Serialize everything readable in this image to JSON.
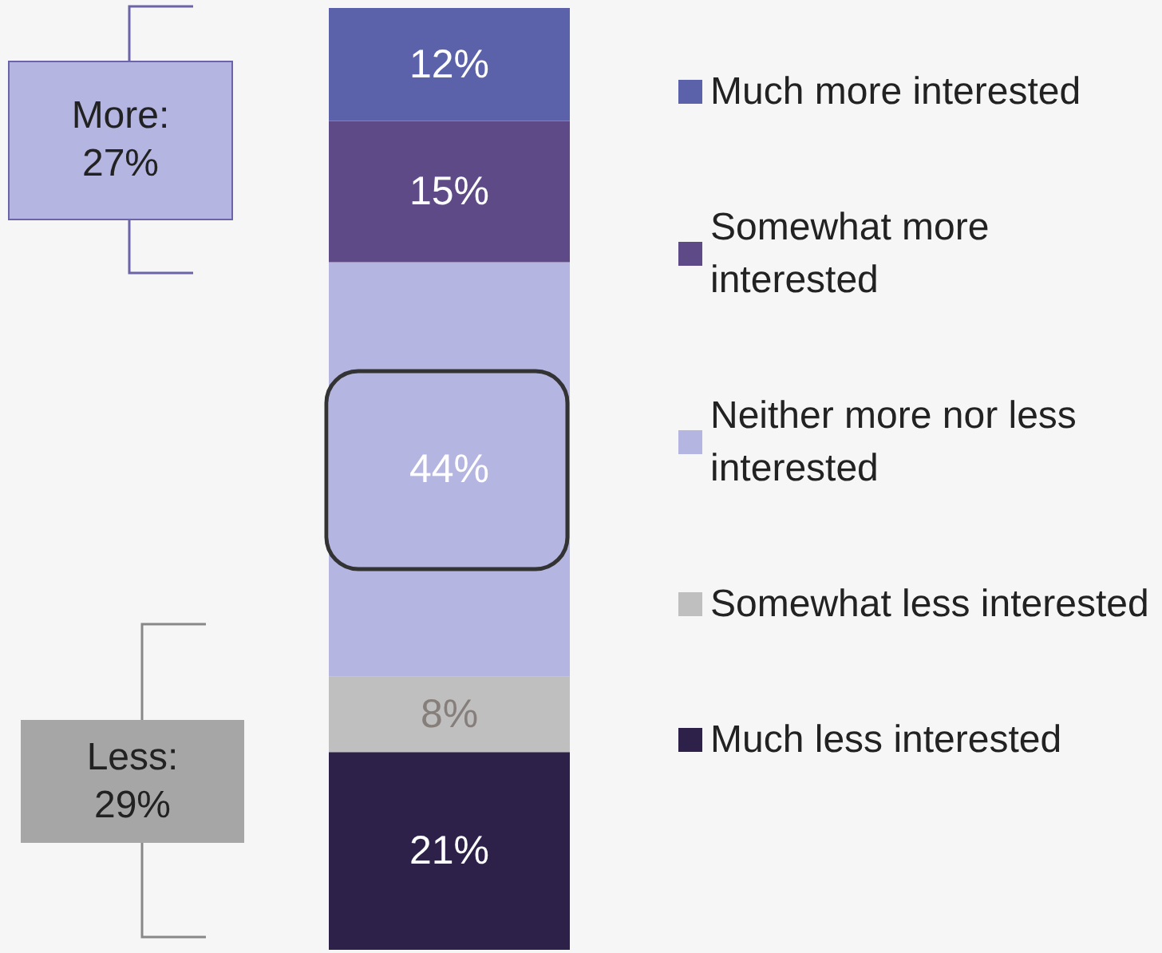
{
  "chart_data": {
    "type": "bar",
    "stacked": true,
    "categories": [
      null
    ],
    "series": [
      {
        "name": "Much less interested",
        "color": "#2e2149",
        "values": [
          21
        ],
        "value_labels": [
          "21%"
        ]
      },
      {
        "name": "Somewhat less interested",
        "color": "#bfbfbf",
        "values": [
          8
        ],
        "value_labels": [
          "8%"
        ]
      },
      {
        "name": "Neither more nor less interested",
        "color": "#b5b5e2",
        "values": [
          44
        ],
        "value_labels": [
          "44%"
        ]
      },
      {
        "name": "Somewhat more interested",
        "color": "#5e4a86",
        "values": [
          15
        ],
        "value_labels": [
          "15%"
        ]
      },
      {
        "name": "Much more interested",
        "color": "#5b62aa",
        "values": [
          12
        ],
        "value_labels": [
          "12%"
        ]
      }
    ],
    "ylim": [
      0,
      100
    ],
    "tick_labels": false,
    "legend": "right",
    "annotations": [
      "More: 27%",
      "Less: 29%"
    ]
  }
}
